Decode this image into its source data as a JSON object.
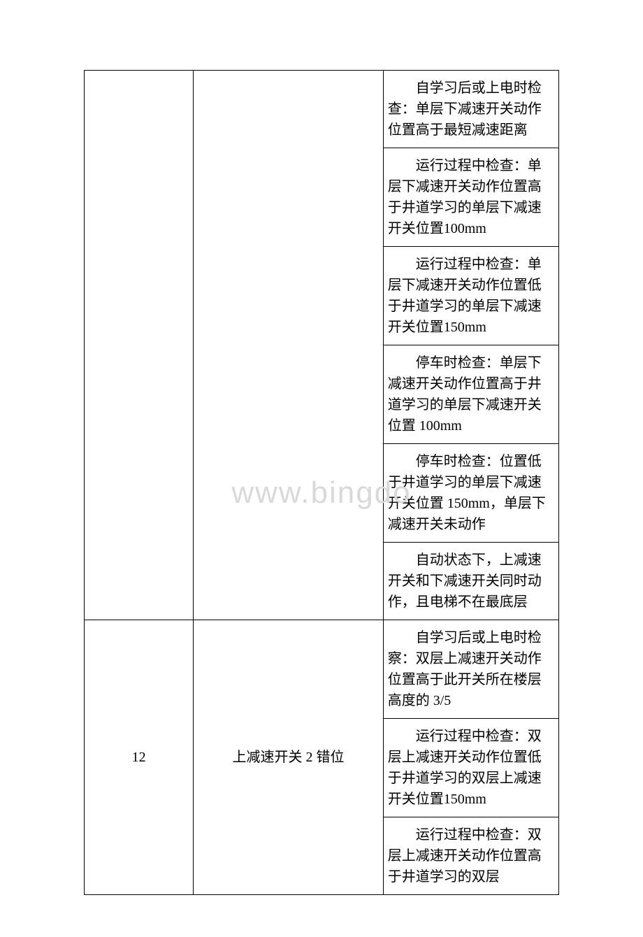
{
  "watermark_text": "www.bingdo",
  "table": {
    "group1": {
      "code": "",
      "name": "",
      "cells": [
        "自学习后或上电时检查：单层下减速开关动作位置高于最短减速距离",
        "运行过程中检查：单层下减速开关动作位置高于井道学习的单层下减速开关位置100mm",
        "运行过程中检查：单层下减速开关动作位置低于井道学习的单层下减速开关位置150mm",
        "停车时检查：单层下减速开关动作位置高于井道学习的单层下减速开关位置 100mm",
        "停车时检查：位置低于井道学习的单层下减速开关位置 150mm，单层下减速开关未动作",
        "自动状态下，上减速开关和下减速开关同时动作，且电梯不在最底层"
      ]
    },
    "group2": {
      "code": "12",
      "name": "上减速开关 2 错位",
      "cells": [
        "自学习后或上电时检察：双层上减速开关动作位置高于此开关所在楼层高度的 3/5",
        "运行过程中检查：双层上减速开关动作位置低于井道学习的双层上减速开关位置150mm",
        "运行过程中检查：双层上减速开关动作位置高于井道学习的双层"
      ]
    }
  }
}
